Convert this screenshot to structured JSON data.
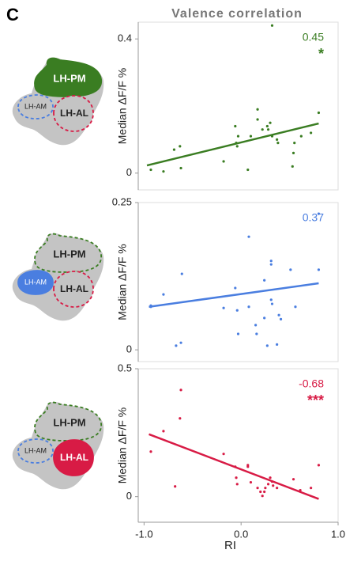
{
  "panel_label": "C",
  "title": "Valence correlation",
  "diagram_labels": [
    "LH-PM",
    "LH-AM",
    "LH-AL"
  ],
  "chart_data": [
    {
      "type": "scatter",
      "color": "#3a7d22",
      "ylabel": "Median ΔF/F %",
      "xlim": [
        -1.06,
        1.0
      ],
      "ylim": [
        -0.05,
        0.45
      ],
      "yticks": [
        0,
        0.4
      ],
      "x": [
        -0.93,
        -0.8,
        -0.69,
        -0.63,
        -0.62,
        -0.18,
        -0.06,
        -0.05,
        -0.04,
        -0.03,
        0.07,
        0.1,
        0.17,
        0.17,
        0.22,
        0.27,
        0.28,
        0.3,
        0.32,
        0.37,
        0.38,
        0.53,
        0.54,
        0.55,
        0.62,
        0.72,
        0.8,
        0.32
      ],
      "values": [
        0.01,
        0.005,
        0.07,
        0.08,
        0.015,
        0.035,
        0.14,
        0.09,
        0.08,
        0.11,
        0.01,
        0.11,
        0.19,
        0.16,
        0.13,
        0.14,
        0.13,
        0.15,
        0.11,
        0.1,
        0.09,
        0.02,
        0.06,
        0.09,
        0.11,
        0.12,
        0.18,
        0.44
      ],
      "fit": {
        "x": [
          -0.97,
          0.8
        ],
        "y": [
          0.023,
          0.148
        ]
      },
      "annotations": [
        "0.45",
        "*"
      ]
    },
    {
      "type": "scatter",
      "color": "#4a7ee0",
      "ylabel": "Median ΔF/F %",
      "xlim": [
        -1.06,
        1.0
      ],
      "ylim": [
        -0.02,
        0.25
      ],
      "yticks": [
        0,
        0.25
      ],
      "x": [
        -0.93,
        -0.93,
        -0.8,
        -0.67,
        -0.62,
        -0.61,
        -0.18,
        -0.06,
        -0.04,
        -0.03,
        0.08,
        0.08,
        0.15,
        0.16,
        0.24,
        0.24,
        0.27,
        0.31,
        0.31,
        0.31,
        0.32,
        0.37,
        0.39,
        0.41,
        0.51,
        0.56,
        0.8,
        0.8
      ],
      "values": [
        0.075,
        0.073,
        0.094,
        0.007,
        0.012,
        0.129,
        0.071,
        0.105,
        0.067,
        0.027,
        0.192,
        0.073,
        0.042,
        0.027,
        0.118,
        0.054,
        0.007,
        0.151,
        0.145,
        0.085,
        0.078,
        0.009,
        0.059,
        0.052,
        0.136,
        0.073,
        0.136,
        0.231
      ],
      "fit": {
        "x": [
          -0.95,
          0.8
        ],
        "y": [
          0.073,
          0.113
        ]
      },
      "annotations": [
        "0.37"
      ]
    },
    {
      "type": "scatter",
      "color": "#d81b45",
      "ylabel": "Median ΔF/F %",
      "xlabel": "RI",
      "xlim": [
        -1.06,
        1.0
      ],
      "ylim": [
        -0.1,
        0.5
      ],
      "yticks": [
        0,
        0.5
      ],
      "xticks": [
        {
          "value": -1,
          "label": "-1.0"
        },
        {
          "value": 0,
          "label": "0.0"
        },
        {
          "value": 1,
          "label": "1.0"
        }
      ],
      "x": [
        -0.93,
        -0.8,
        -0.68,
        -0.63,
        -0.62,
        -0.18,
        -0.06,
        -0.05,
        -0.04,
        0.07,
        0.07,
        0.1,
        0.17,
        0.2,
        0.22,
        0.24,
        0.25,
        0.28,
        0.3,
        0.32,
        0.33,
        0.37,
        0.54,
        0.61,
        0.72,
        0.8
      ],
      "values": [
        0.176,
        0.256,
        0.04,
        0.306,
        0.417,
        0.167,
        0.117,
        0.074,
        0.049,
        0.123,
        0.117,
        0.056,
        0.034,
        0.019,
        0.003,
        0.019,
        0.034,
        0.049,
        0.074,
        0.059,
        0.043,
        0.034,
        0.068,
        0.025,
        0.034,
        0.123
      ],
      "fit": {
        "x": [
          -0.95,
          0.8
        ],
        "y": [
          0.244,
          -0.009
        ]
      },
      "annotations": [
        "-0.68",
        "***"
      ]
    }
  ]
}
